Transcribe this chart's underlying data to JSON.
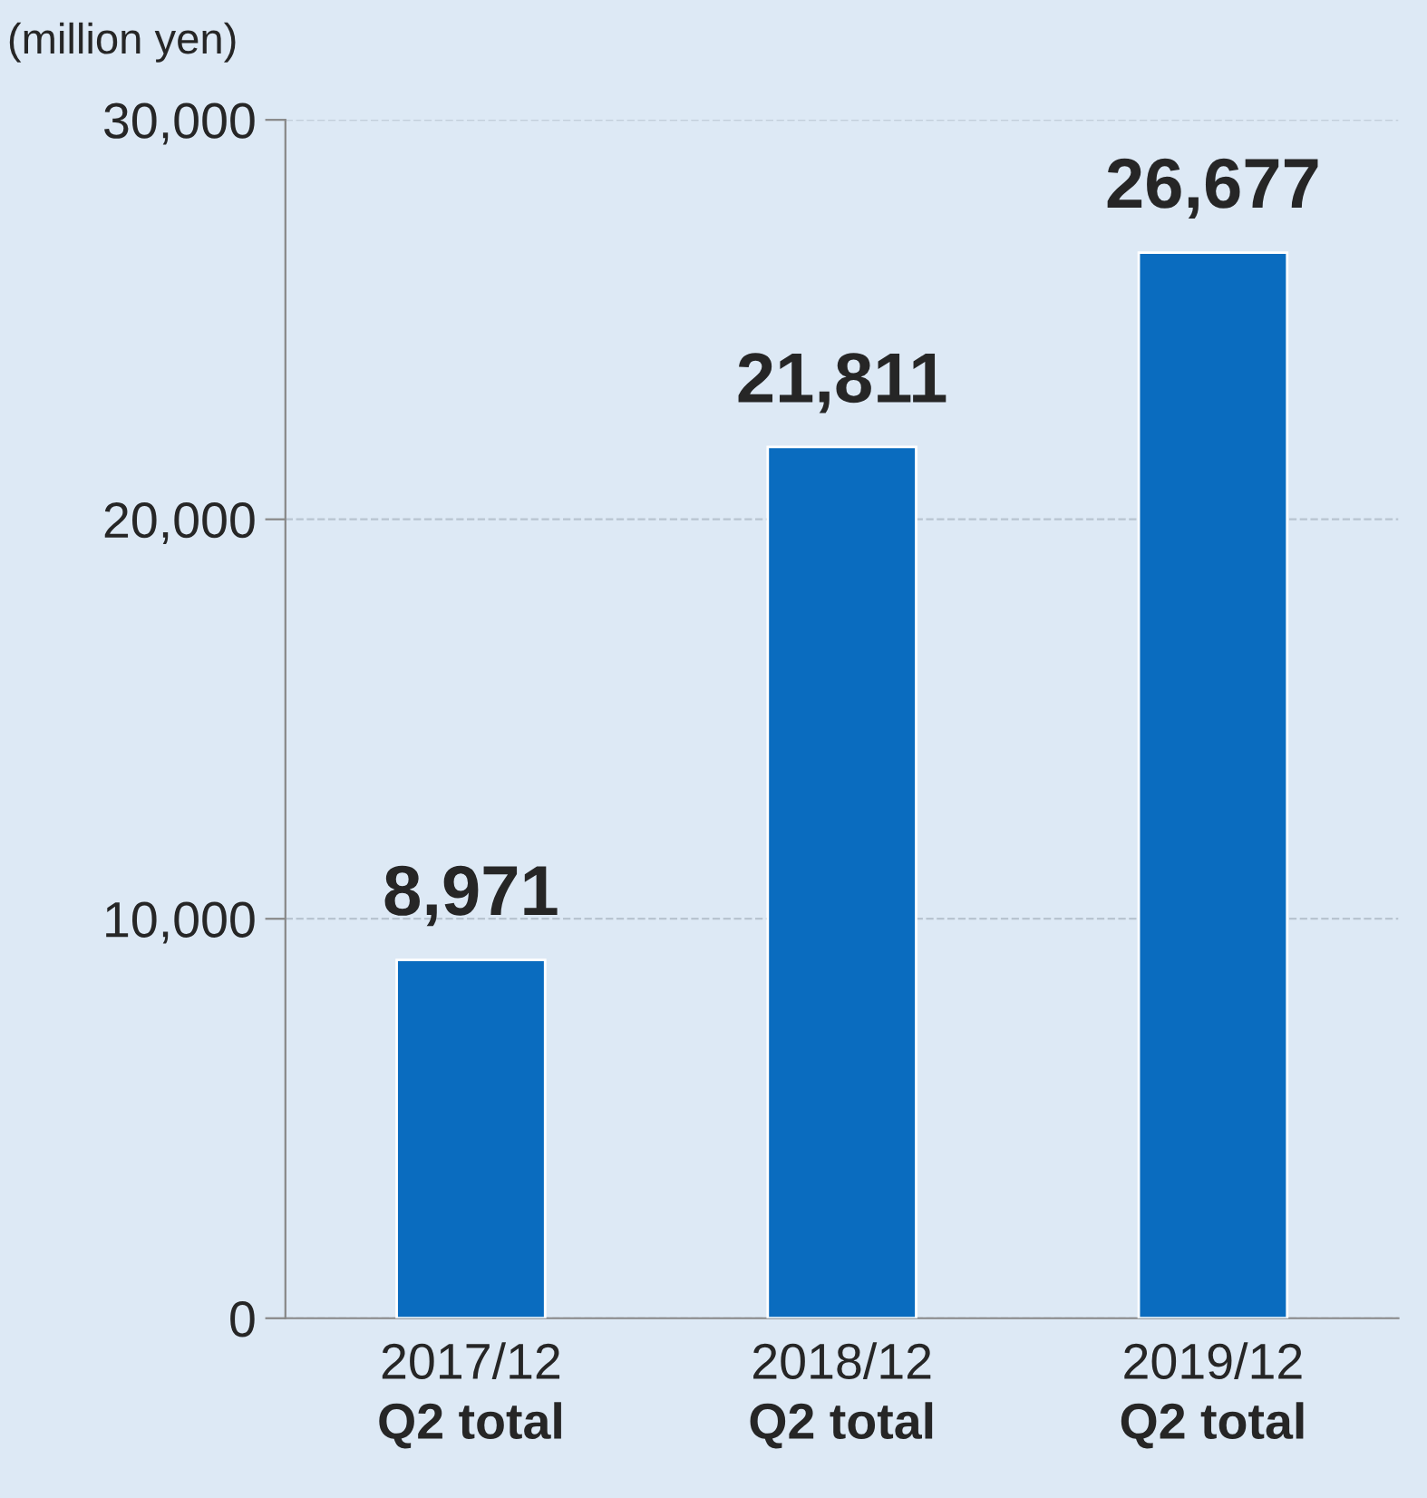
{
  "chart_data": {
    "type": "bar",
    "ylabel": "(million yen)",
    "categories": [
      "2017/12\nQ2 total",
      "2018/12\nQ2 total",
      "2019/12\nQ2 total"
    ],
    "values": [
      8971,
      21811,
      26677
    ],
    "color": "#0a6cbf",
    "ylim": [
      0,
      30000
    ],
    "yticks": [
      {
        "value": 0,
        "label": "0"
      },
      {
        "value": 10000,
        "label": "10,000"
      },
      {
        "value": 20000,
        "label": "20,000"
      },
      {
        "value": 30000,
        "label": "30,000"
      }
    ],
    "value_labels": [
      "8,971",
      "21,811",
      "26,677"
    ],
    "grid": "y"
  }
}
